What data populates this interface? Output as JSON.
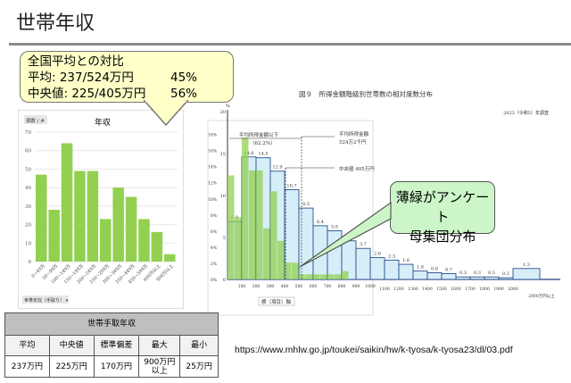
{
  "title": "世帯年収",
  "bubble": {
    "line1": "全国平均との対比",
    "mean_label": "平均: 237/524万円",
    "mean_pct": "45%",
    "median_label": "中央値: 225/405万円",
    "median_pct": "56%"
  },
  "green_callout": {
    "line1": "薄緑がアンケート",
    "line2": "母集団分布"
  },
  "url": "https://www.mhlw.go.jp/toukei/saikin/hw/k-tyosa/k-tyosa23/dl/03.pdf",
  "table": {
    "title": "世帯手取年収",
    "headers": [
      "平均",
      "中央値",
      "標準偏差",
      "最大",
      "最小"
    ],
    "values": [
      "237万円",
      "225万円",
      "170万円",
      "900万円以上",
      "25万円"
    ]
  },
  "chart_data": [
    {
      "type": "bar",
      "title": "年収",
      "corner_label": "個数 / #",
      "dropdown": "世帯年収（手取り） ▾",
      "color": "#92d050",
      "ylim": [
        0,
        70
      ],
      "yticks": [
        0,
        10,
        20,
        30,
        40,
        50,
        60,
        70
      ],
      "categories": [
        "0~49万",
        "50~99万",
        "100~149万",
        "150~199万",
        "200~249万",
        "250~299万",
        "300~349万",
        "350~449万",
        "450~599万",
        "600万以上",
        "900万以上"
      ],
      "values": [
        47,
        28,
        64,
        49,
        49,
        23,
        40,
        35,
        23,
        16,
        4
      ]
    },
    {
      "type": "bar",
      "title": "図９　所得金額階級別世帯数の相対度数分布",
      "subtitle": "2023（令和5）年調査",
      "ylabel": "%",
      "ylim": [
        0,
        20
      ],
      "yticks": [
        0,
        5,
        10,
        15,
        20
      ],
      "pct_ticks": [
        "0%",
        "2%",
        "4%",
        "6%",
        "8%",
        "10%",
        "12%",
        "14%",
        "16%",
        "18%"
      ],
      "xticks": [
        "100",
        "200",
        "300",
        "400",
        "500",
        "600",
        "700",
        "800",
        "900",
        "1000",
        "1100",
        "1200",
        "1300",
        "1400",
        "1500",
        "1600",
        "1700",
        "1800",
        "1900",
        "2000",
        "2000万円以上"
      ],
      "series": [
        {
          "color": "#d6eef8",
          "values": [
            6.9,
            14.6,
            14.5,
            12.9,
            10.7,
            8.5,
            6.4,
            5.8,
            4.6,
            3.7,
            2.6,
            2.3,
            1.8,
            1.0,
            0.8,
            0.7,
            0.3,
            0.3,
            0.3,
            0.2,
            1.3
          ]
        },
        {
          "color": "#92d050",
          "values": [
            12.4,
            7.4,
            16.9,
            13,
            13,
            6.1,
            10.5,
            4.6,
            2,
            2,
            0.6,
            0.6,
            0.6,
            0.6,
            0.6,
            0.6,
            1.0
          ]
        }
      ],
      "annotations": {
        "below_mean": "平均所得金額以下",
        "below_mean_pct": "（62.2%）",
        "mean1": "平均所得金額",
        "mean2": "524万2千円",
        "median": "中央値 405万円",
        "axis_label": "横（項目）軸"
      }
    }
  ]
}
